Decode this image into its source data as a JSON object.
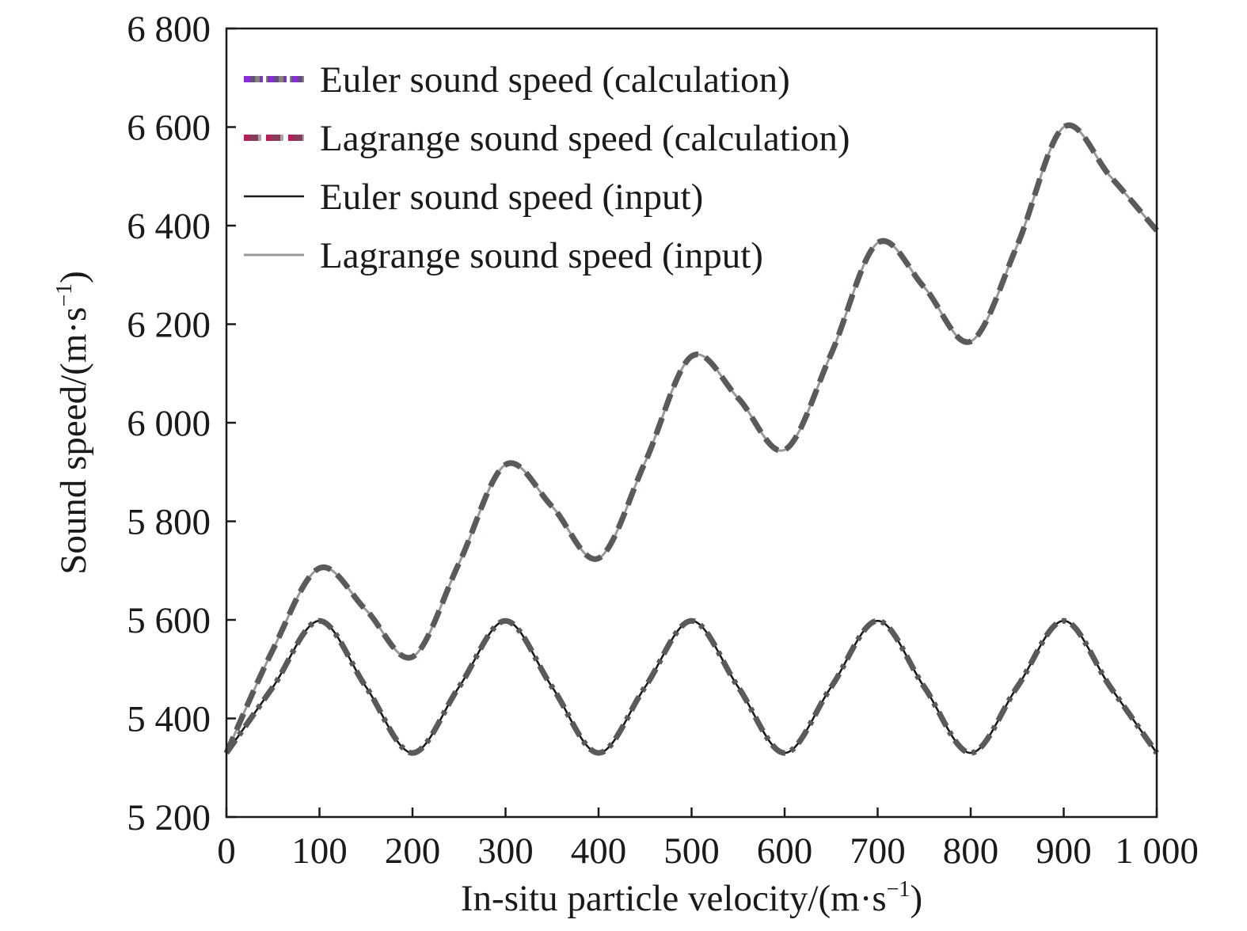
{
  "chart_data": {
    "type": "line",
    "xlabel": {
      "prefix": "In-situ particle velocity/(m·s",
      "sup": "−1",
      "suffix": ")"
    },
    "ylabel": {
      "prefix": "Sound speed/(m·s",
      "sup": "−1",
      "suffix": ")"
    },
    "xlim": [
      0,
      1000
    ],
    "ylim": [
      5200,
      6800
    ],
    "xticks": [
      0,
      100,
      200,
      300,
      400,
      500,
      600,
      700,
      800,
      900,
      1000
    ],
    "xtick_labels": [
      "0",
      "100",
      "200",
      "300",
      "400",
      "500",
      "600",
      "700",
      "800",
      "900",
      "1 000"
    ],
    "yticks": [
      5200,
      5400,
      5600,
      5800,
      6000,
      6200,
      6400,
      6600,
      6800
    ],
    "ytick_labels": [
      "5 200",
      "5 400",
      "5 600",
      "5 800",
      "6 000",
      "6 200",
      "6 400",
      "6 600",
      "6 800"
    ],
    "legend_position": "top-left",
    "x": [
      0,
      50,
      100,
      150,
      200,
      250,
      300,
      350,
      400,
      450,
      500,
      550,
      600,
      650,
      700,
      750,
      800,
      850,
      900,
      950,
      1000
    ],
    "series": [
      {
        "name": "Euler sound speed (calculation)",
        "style": "dashdot",
        "colors": [
          "#8a2be2",
          "#5a5a5a"
        ],
        "values": [
          5330,
          5464,
          5598,
          5464,
          5330,
          5464,
          5598,
          5464,
          5330,
          5464,
          5598,
          5464,
          5330,
          5464,
          5598,
          5464,
          5330,
          5464,
          5598,
          5464,
          5330
        ]
      },
      {
        "name": "Lagrange sound speed (calculation)",
        "style": "dashed",
        "colors": [
          "#c2185b",
          "#5a5a5a"
        ],
        "values": [
          5330,
          5540,
          5705,
          5620,
          5525,
          5715,
          5915,
          5830,
          5725,
          5920,
          6135,
          6050,
          5945,
          6140,
          6365,
          6275,
          6165,
          6360,
          6600,
          6500,
          6390
        ]
      },
      {
        "name": "Euler sound speed (input)",
        "style": "solid",
        "colors": [
          "#1a1a1a"
        ],
        "values": [
          5330,
          5464,
          5598,
          5464,
          5330,
          5464,
          5598,
          5464,
          5330,
          5464,
          5598,
          5464,
          5330,
          5464,
          5598,
          5464,
          5330,
          5464,
          5598,
          5464,
          5330
        ]
      },
      {
        "name": "Lagrange sound speed (input)",
        "style": "solid",
        "colors": [
          "#9a9a9a"
        ],
        "values": [
          5330,
          5540,
          5705,
          5620,
          5525,
          5715,
          5915,
          5830,
          5725,
          5920,
          6135,
          6050,
          5945,
          6140,
          6365,
          6275,
          6165,
          6360,
          6600,
          6500,
          6390
        ]
      }
    ]
  }
}
